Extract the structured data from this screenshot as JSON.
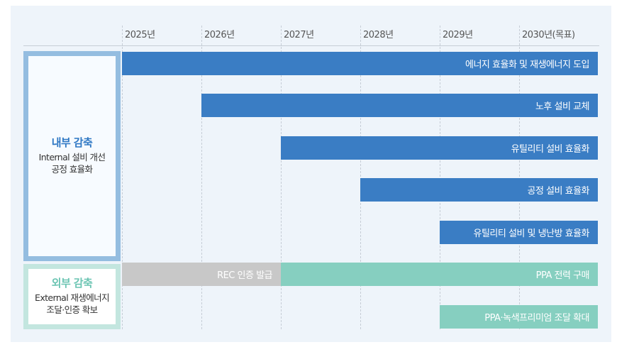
{
  "years": [
    "2025년",
    "2026년",
    "2027년",
    "2028년",
    "2029년",
    "2030년(목표)"
  ],
  "groups": [
    {
      "title": "내부 감축",
      "lines": [
        "Internal 설비 개선",
        "공정 효율화"
      ]
    },
    {
      "title": "외부 감축",
      "lines": [
        "External 재생에너지",
        "조달·인증 확보"
      ]
    }
  ],
  "internal_bars": [
    "에너지 효율화 및 재생에너지 도입",
    "노후 설비 교체",
    "유틸리티 설비 효율화",
    "공정 설비 효율화",
    "유틸리티 설비 및 냉난방 효율화"
  ],
  "external_bars": [
    "REC 인증 발급",
    "PPA 전력 구매",
    "PPA·녹색프리미엄 조달 확대"
  ]
}
